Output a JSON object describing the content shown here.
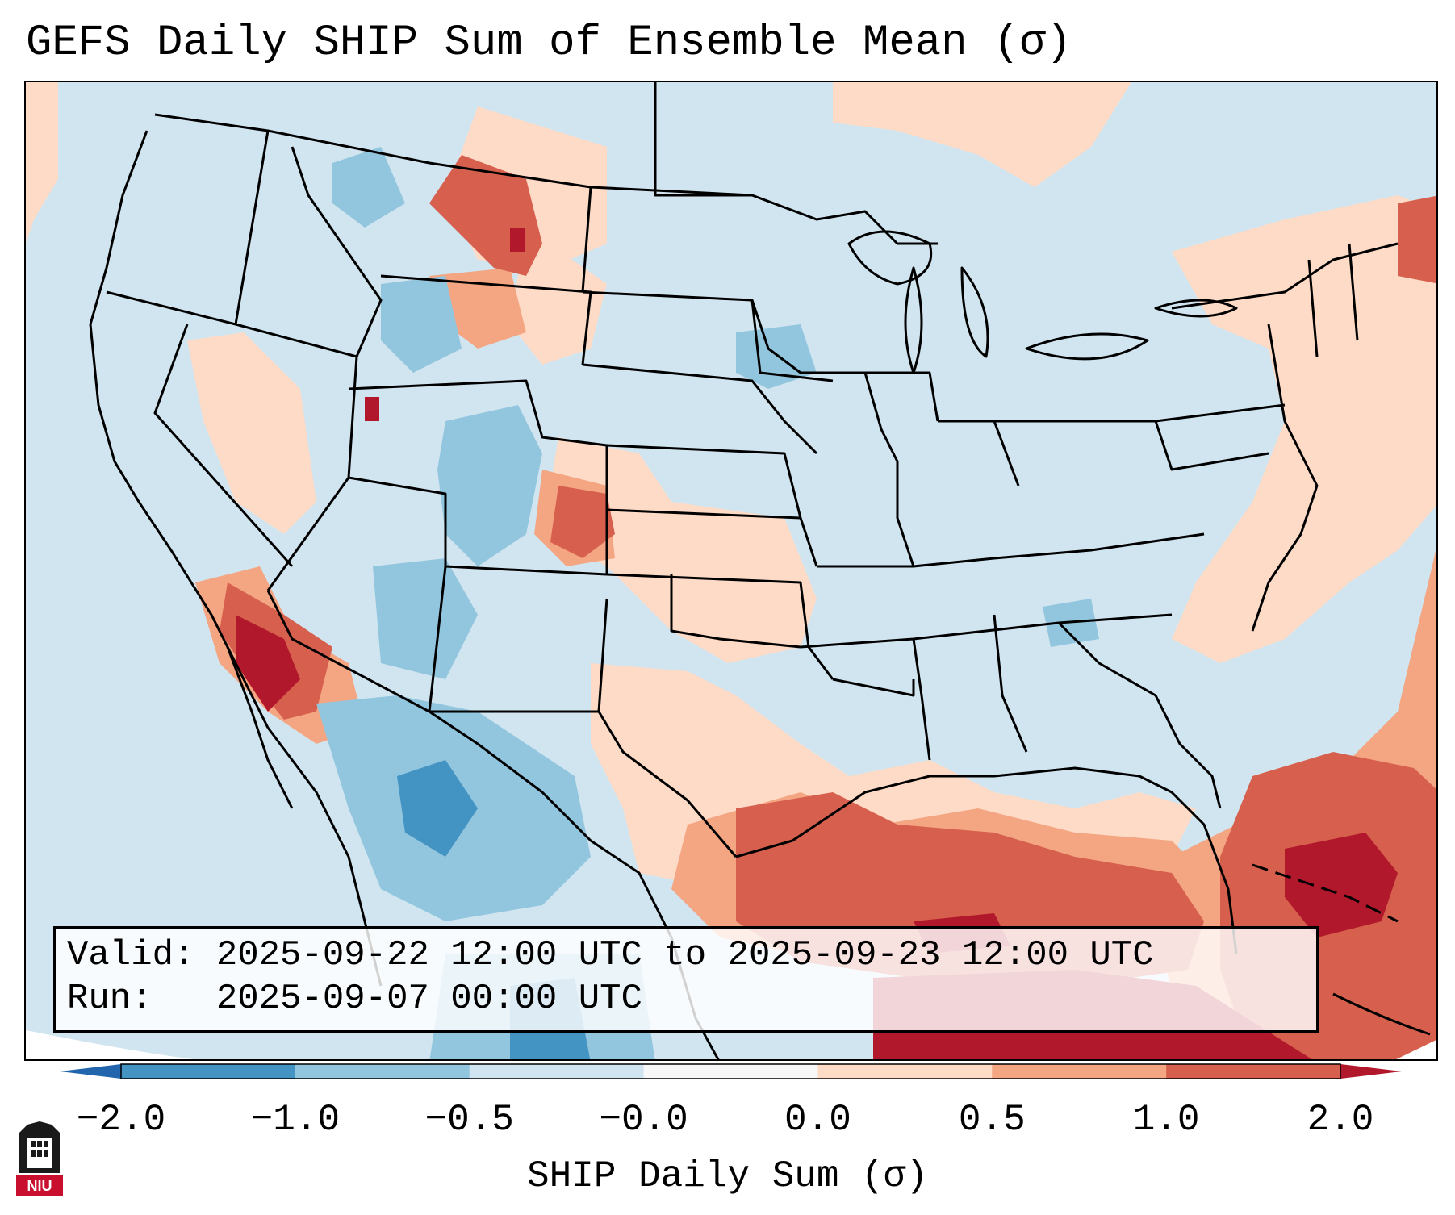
{
  "title": "GEFS Daily SHIP Sum of Ensemble Mean (σ)",
  "valid_line": "Valid: 2025-09-22 12:00 UTC to 2025-09-23 12:00 UTC",
  "run_line": "Run:   2025-09-07 00:00 UTC",
  "colorbar": {
    "label": "SHIP Daily Sum (σ)",
    "ticks": [
      "−2.0",
      "−1.0",
      "−0.5",
      "−0.0",
      "0.0",
      "0.5",
      "1.0",
      "2.0"
    ],
    "colors": [
      "#4393c3",
      "#92c5de",
      "#d1e5f0",
      "#f7f7f7",
      "#fddbc7",
      "#f4a582",
      "#d6604d"
    ],
    "under_color": "#2166ac",
    "over_color": "#b2182b"
  },
  "map": {
    "region": "Contiguous United States",
    "background_color": "#d1e5f0",
    "icon": "us-state-boundaries-map"
  },
  "logo": {
    "text": "NIU",
    "icon": "niu-university-logo"
  }
}
